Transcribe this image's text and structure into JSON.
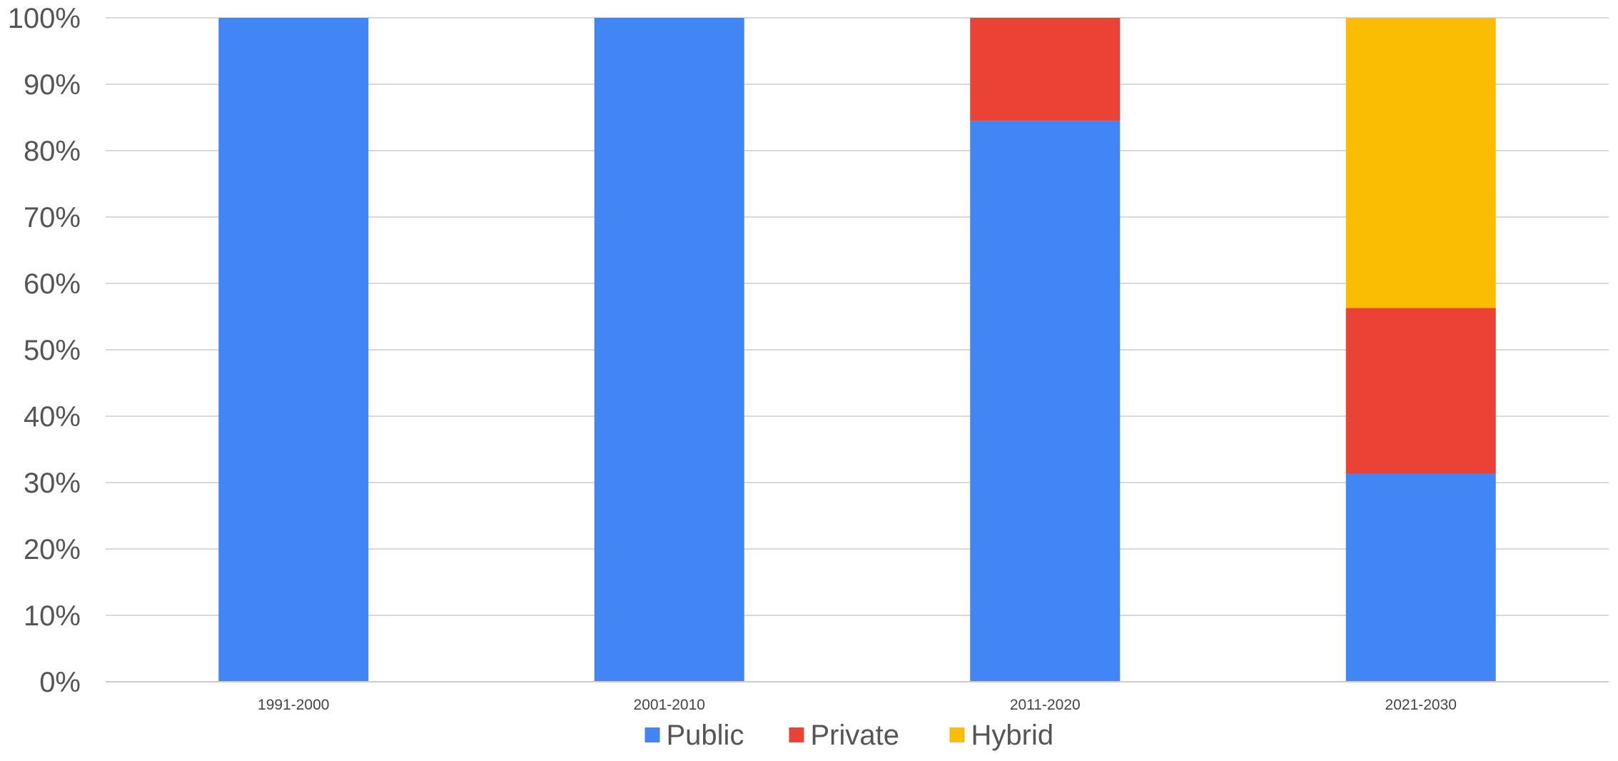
{
  "chart_data": {
    "type": "bar",
    "stacked": true,
    "categories": [
      "1991-2000",
      "2001-2010",
      "2011-2020",
      "2021-2030"
    ],
    "series": [
      {
        "name": "Public",
        "color": "#4285F4",
        "values": [
          100,
          100,
          84.5,
          31.3
        ]
      },
      {
        "name": "Private",
        "color": "#EA4335",
        "values": [
          0,
          0,
          15.5,
          25
        ]
      },
      {
        "name": "Hybrid",
        "color": "#FBBC04",
        "values": [
          0,
          0,
          0,
          43.7
        ]
      }
    ],
    "ylim": [
      0,
      100
    ],
    "yticks": [
      0,
      10,
      20,
      30,
      40,
      50,
      60,
      70,
      80,
      90,
      100
    ],
    "ytick_labels": [
      "0%",
      "10%",
      "20%",
      "30%",
      "40%",
      "50%",
      "60%",
      "70%",
      "80%",
      "90%",
      "100%"
    ],
    "grid": true,
    "gridline_color": "#d9d9d9",
    "legend_position": "bottom"
  }
}
